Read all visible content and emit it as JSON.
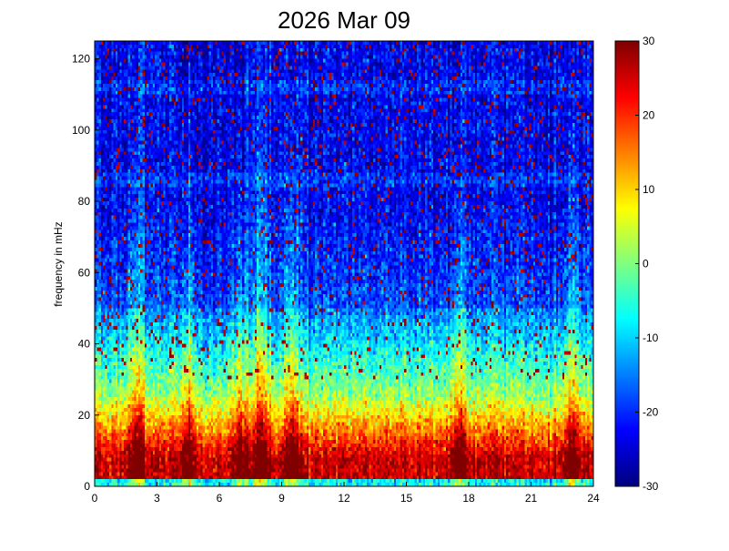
{
  "chart_data": {
    "type": "heatmap",
    "title": "2026 Mar 09",
    "xlabel": "",
    "ylabel": "frequency in mHz",
    "xlim": [
      0,
      24
    ],
    "ylim": [
      0,
      125
    ],
    "x_ticks": [
      "0",
      "3",
      "6",
      "9",
      "12",
      "15",
      "18",
      "21",
      "24"
    ],
    "y_ticks": [
      "0",
      "20",
      "40",
      "60",
      "80",
      "100",
      "120"
    ],
    "colorbar": {
      "range": [
        -30,
        30
      ],
      "ticks": [
        "30",
        "20",
        "10",
        "0",
        "-10",
        "-20",
        "-30"
      ],
      "colormap": "jet"
    },
    "grid": false,
    "description_of_values": {
      "low_band_0_to_8_mHz": "about 20 to 30",
      "band_8_to_25_mHz": "about 0 to 15",
      "band_25_to_50_mHz": "about -10 to 0",
      "above_50_mHz": "about -20 to -25 with scattered high pixels",
      "vertical_bursts_hours": [
        2,
        4.5,
        7,
        8,
        9.5,
        17.5,
        23
      ]
    }
  }
}
